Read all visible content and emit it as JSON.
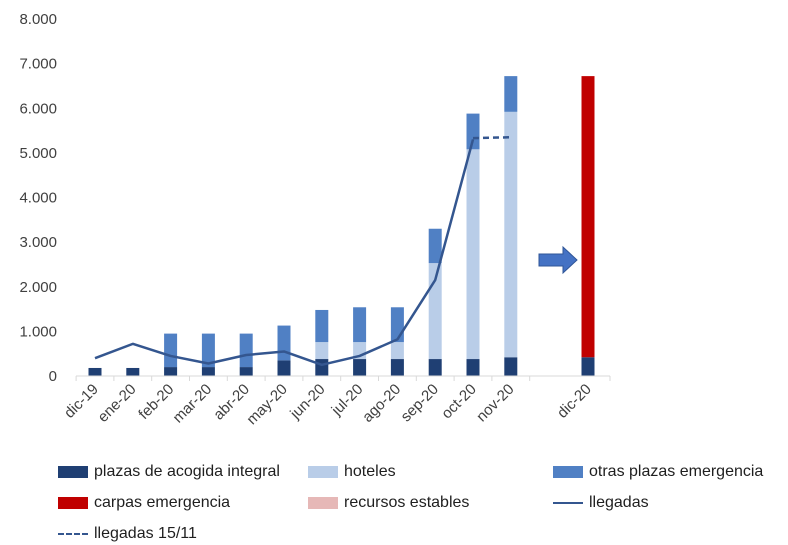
{
  "chart_data": {
    "type": "bar",
    "stacked": true,
    "categories": [
      "dic-19",
      "ene-20",
      "feb-20",
      "mar-20",
      "abr-20",
      "may-20",
      "jun-20",
      "jul-20",
      "ago-20",
      "sep-20",
      "oct-20",
      "nov-20",
      "dic-20"
    ],
    "ylim": [
      0,
      8000
    ],
    "yticks": [
      "0",
      "1.000",
      "2.000",
      "3.000",
      "4.000",
      "5.000",
      "6.000",
      "7.000",
      "8.000"
    ],
    "ytick_values": [
      0,
      1000,
      2000,
      3000,
      4000,
      5000,
      6000,
      7000,
      8000
    ],
    "grid": false,
    "legend_position": "bottom",
    "series": [
      {
        "name": "plazas de acogida integral",
        "kind": "bar",
        "color": "#1f3f73",
        "values": [
          180,
          180,
          200,
          200,
          200,
          350,
          380,
          380,
          380,
          380,
          380,
          420,
          420
        ]
      },
      {
        "name": "hoteles",
        "kind": "bar",
        "color": "#b9cde8",
        "values": [
          0,
          0,
          0,
          0,
          0,
          0,
          380,
          380,
          380,
          2150,
          4700,
          5500,
          0
        ]
      },
      {
        "name": "otras plazas emergencia",
        "kind": "bar",
        "color": "#5080c4",
        "values": [
          0,
          0,
          750,
          750,
          750,
          780,
          720,
          780,
          780,
          770,
          800,
          800,
          0
        ]
      },
      {
        "name": "carpas emergencia",
        "kind": "bar",
        "color": "#c00000",
        "values": [
          0,
          0,
          0,
          0,
          0,
          0,
          0,
          0,
          0,
          0,
          0,
          0,
          6300
        ]
      },
      {
        "name": "recursos estables",
        "kind": "bar",
        "color": "#e6b8b7",
        "values": [
          0,
          0,
          0,
          0,
          0,
          0,
          0,
          0,
          0,
          0,
          0,
          0,
          0
        ]
      },
      {
        "name": "llegadas",
        "kind": "line",
        "color": "#34568f",
        "values": [
          400,
          720,
          450,
          280,
          470,
          550,
          250,
          450,
          820,
          2150,
          5300,
          null,
          null
        ]
      },
      {
        "name": "llegadas 15/11",
        "kind": "dashed",
        "color": "#34568f",
        "values": [
          null,
          null,
          null,
          null,
          null,
          null,
          null,
          null,
          null,
          null,
          5330,
          5350,
          null
        ]
      }
    ],
    "annotations": [
      {
        "type": "arrow",
        "between": [
          "nov-20",
          "dic-20"
        ],
        "color": "#4472c4"
      }
    ]
  }
}
